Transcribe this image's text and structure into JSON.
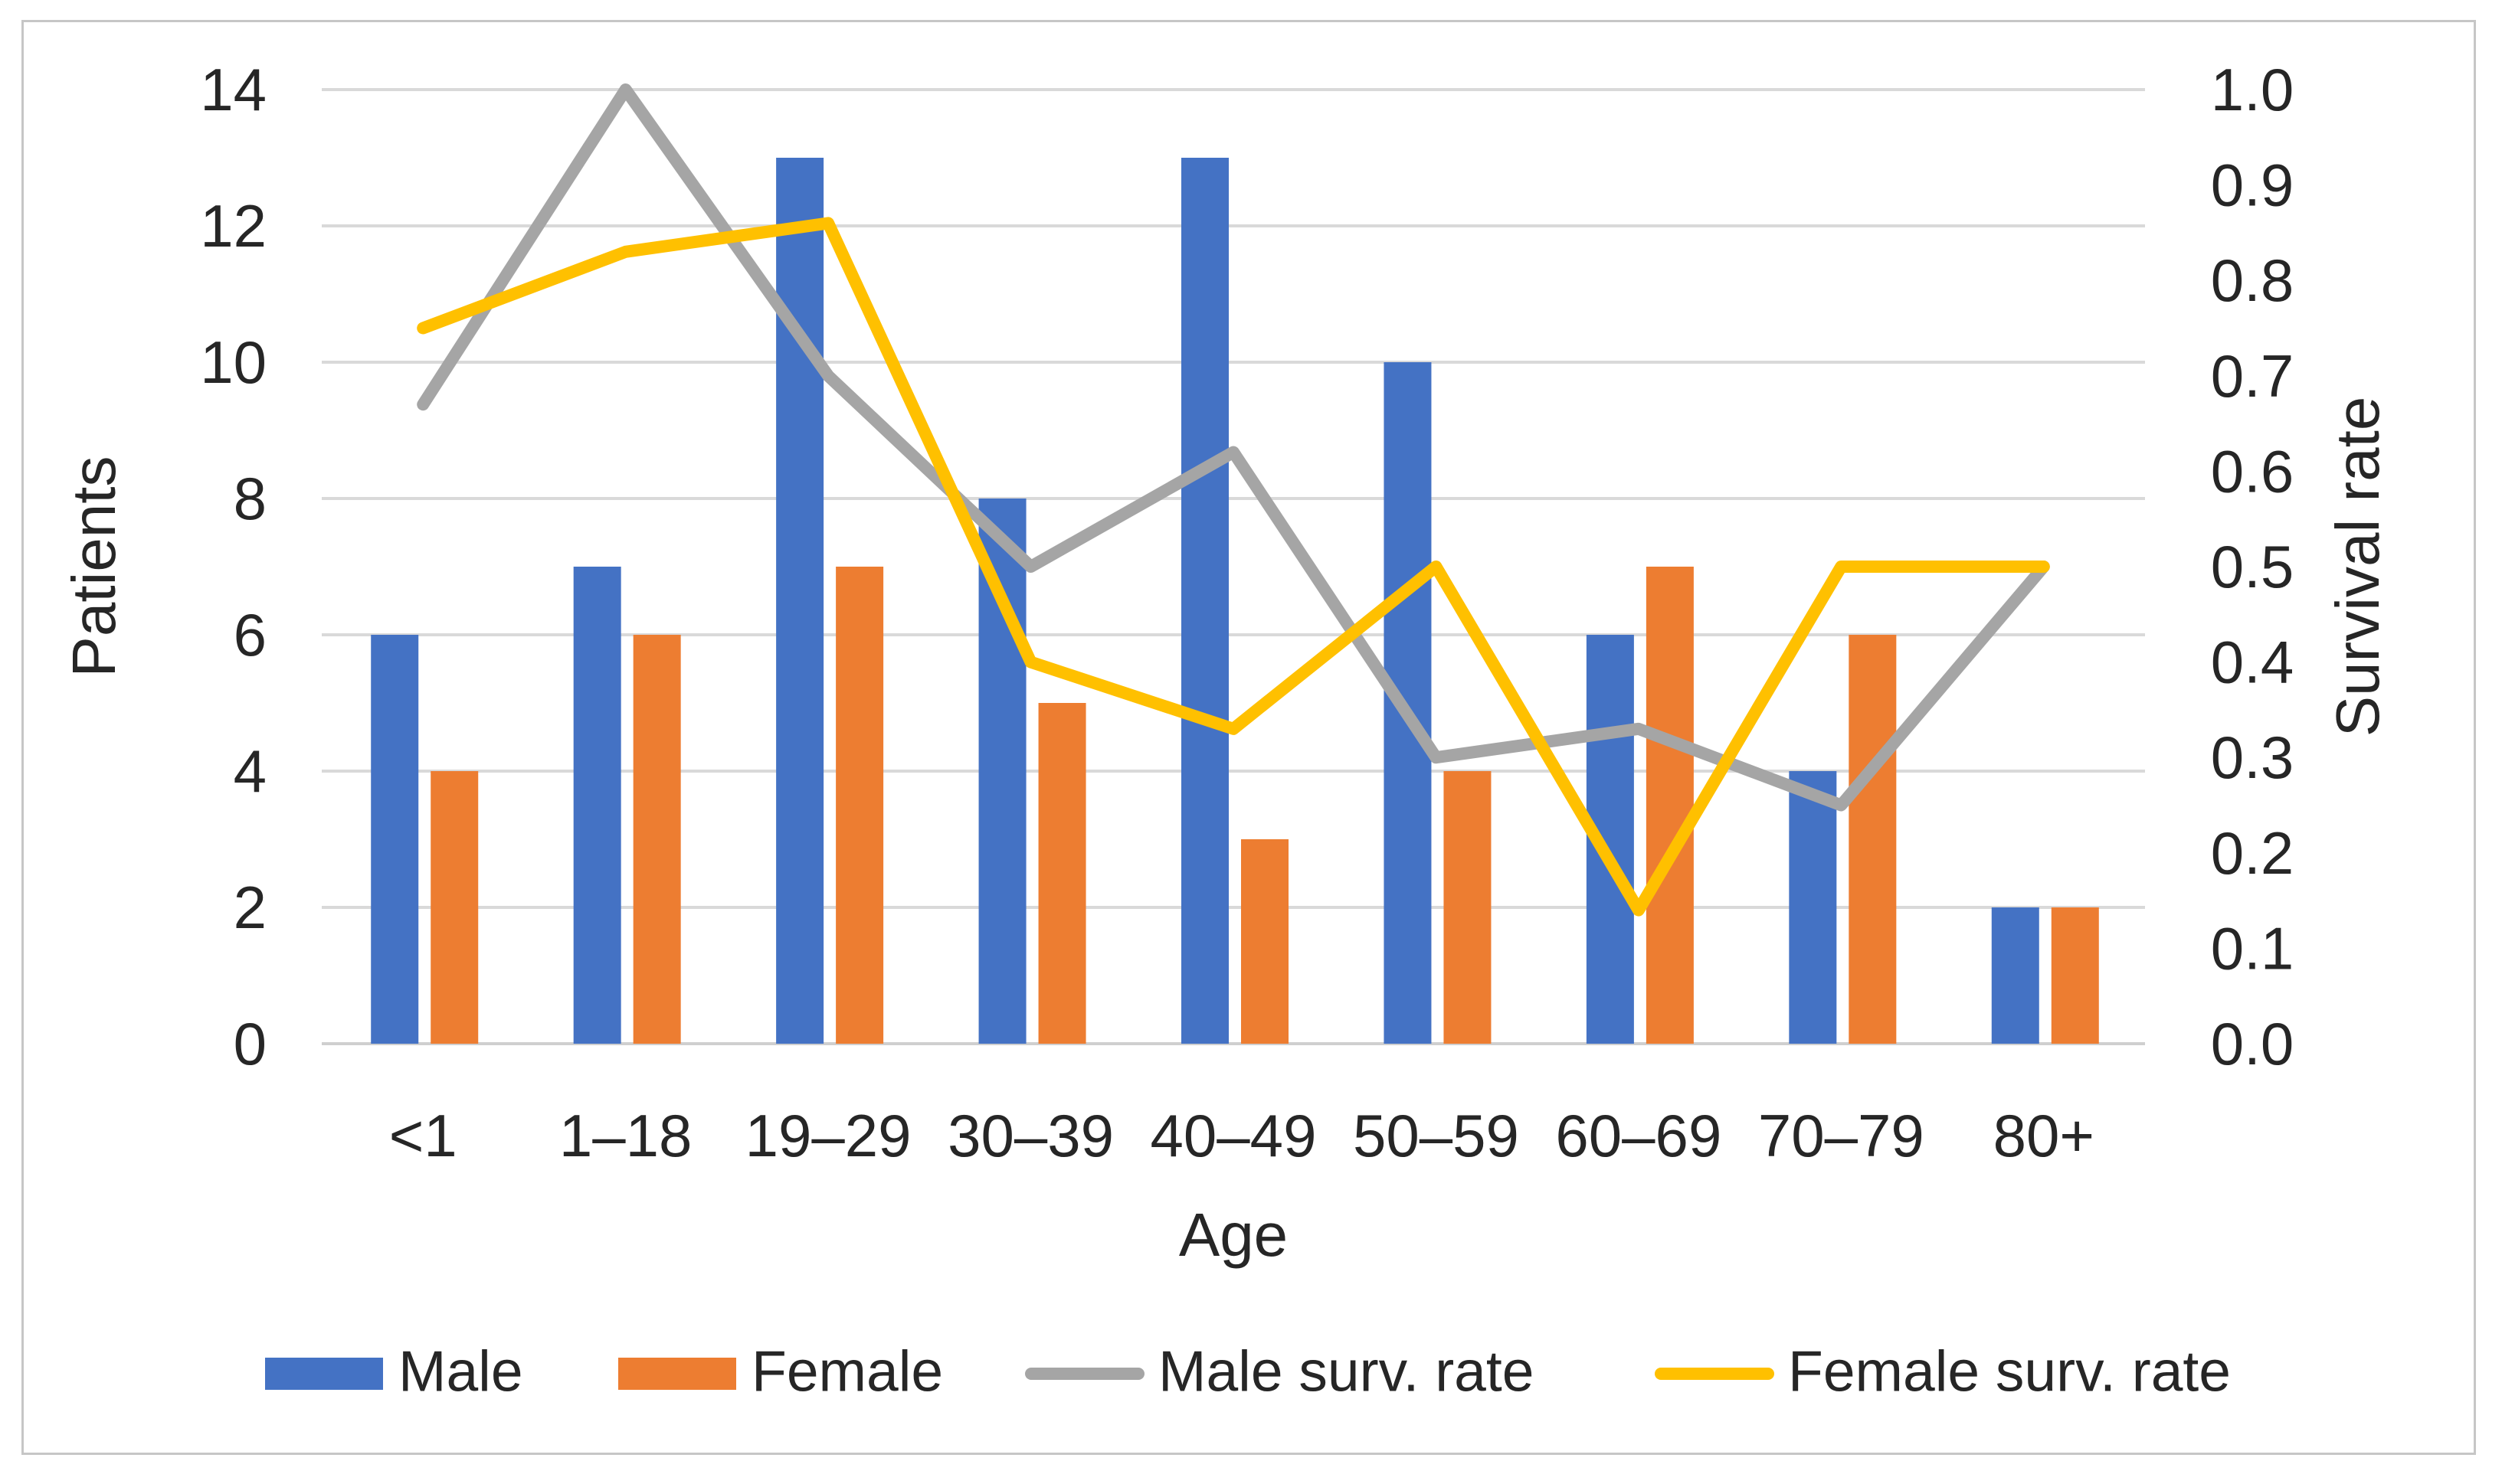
{
  "chart_data": {
    "type": "combo-bar-line",
    "categories": [
      "<1",
      "1–18",
      "19–29",
      "30–39",
      "40–49",
      "50–59",
      "60–69",
      "70–79",
      "80+"
    ],
    "series": [
      {
        "name": "Male",
        "type": "bar",
        "axis": "left",
        "color": "#4472C4",
        "values": [
          6,
          7,
          13,
          8,
          13,
          10,
          6,
          4,
          2
        ]
      },
      {
        "name": "Female",
        "type": "bar",
        "axis": "left",
        "color": "#ED7D31",
        "values": [
          4,
          6,
          7,
          5,
          3,
          4,
          7,
          6,
          2
        ]
      },
      {
        "name": "Male surv. rate",
        "type": "line",
        "axis": "right",
        "color": "#A5A5A5",
        "values": [
          0.67,
          1.0,
          0.7,
          0.5,
          0.62,
          0.3,
          0.33,
          0.25,
          0.5
        ]
      },
      {
        "name": "Female surv. rate",
        "type": "line",
        "axis": "right",
        "color": "#FFC000",
        "values": [
          0.75,
          0.83,
          0.86,
          0.4,
          0.33,
          0.5,
          0.14,
          0.5,
          0.5
        ]
      }
    ],
    "left_axis": {
      "title": "Patients",
      "min": 0,
      "max": 14,
      "step": 2,
      "tick_labels": [
        "0",
        "2",
        "4",
        "6",
        "8",
        "10",
        "12",
        "14"
      ]
    },
    "right_axis": {
      "title": "Survival rate",
      "min": 0.0,
      "max": 1.0,
      "step": 0.1,
      "tick_labels": [
        "0.0",
        "0.1",
        "0.2",
        "0.3",
        "0.4",
        "0.5",
        "0.6",
        "0.7",
        "0.8",
        "0.9",
        "1.0"
      ]
    },
    "x_axis": {
      "title": "Age"
    },
    "grid": true,
    "legend_position": "bottom",
    "colors": {
      "gridline": "#D9D9D9",
      "baseline": "#CFCFCF",
      "text": "#262626",
      "frame_border": "#C6C6C6",
      "background": "#FFFFFF"
    }
  }
}
